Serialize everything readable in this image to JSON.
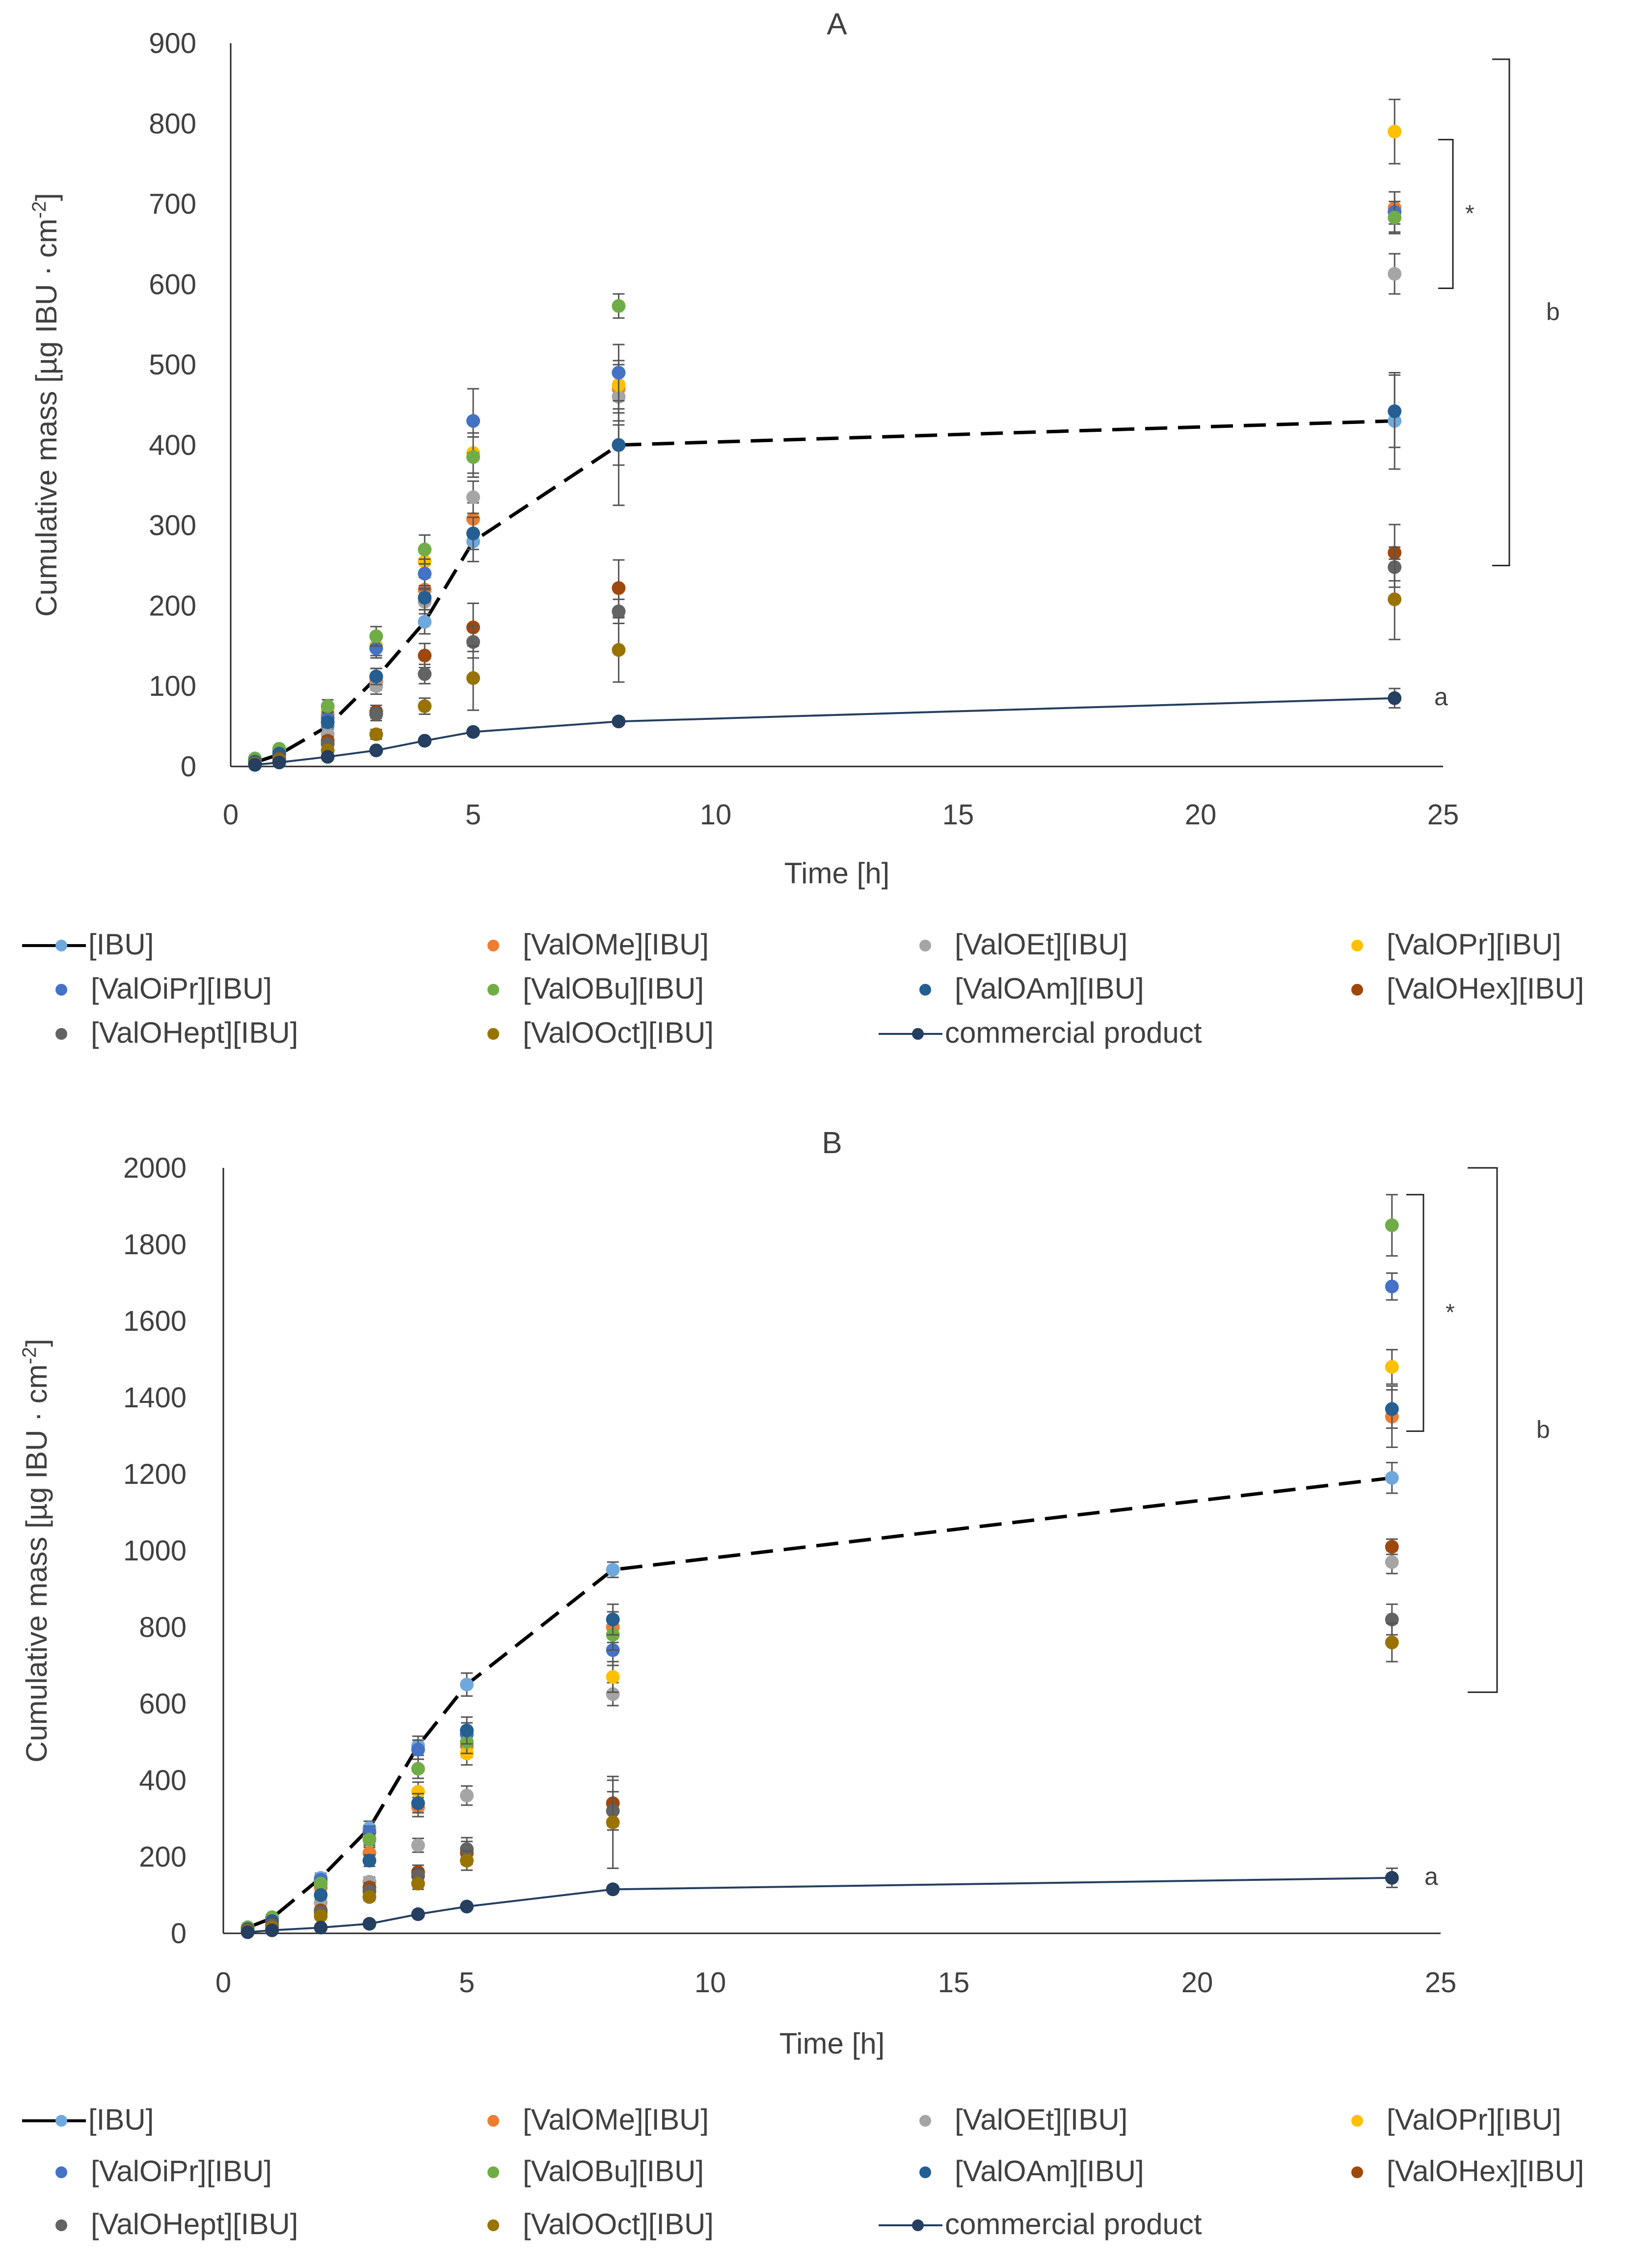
{
  "colors": {
    "IBU": "#6fa8dc",
    "ValOMe": "#ed7d31",
    "ValOEt": "#a5a5a5",
    "ValOPr": "#ffc000",
    "ValOiPr": "#4472c4",
    "ValOBu": "#70ad47",
    "ValOAm": "#255e91",
    "ValOHex": "#9e480e",
    "ValOHept": "#636363",
    "ValOOct": "#997300",
    "commercial": "#243f60",
    "text": "#404040",
    "axis": "#262626"
  },
  "legend_labels": [
    "[IBU]",
    "[ValOMe][IBU]",
    "[ValOEt][IBU]",
    "[ValOPr][IBU]",
    "[ValOiPr][IBU]",
    "[ValOBu][IBU]",
    "[ValOAm][IBU]",
    "[ValOHex][IBU]",
    "[ValOHept][IBU]",
    "[ValOOct][IBU]",
    "commercial product"
  ],
  "chart_data": [
    {
      "type": "scatter",
      "title": "A",
      "xlabel": "Time [h]",
      "ylabel": "Cumulative mass [µg IBU · cm",
      "ylabel_sup": "-2",
      "ylabel_end": "]",
      "xlim": [
        0,
        25
      ],
      "ylim": [
        0,
        900
      ],
      "x_ticks": [
        0,
        5,
        10,
        15,
        20,
        25
      ],
      "y_ticks": [
        0,
        100,
        200,
        300,
        400,
        500,
        600,
        700,
        800,
        900
      ],
      "x": [
        0.5,
        1,
        2,
        3,
        4,
        5,
        8,
        24
      ],
      "series": [
        {
          "name": "[IBU]",
          "key": "IBU",
          "style": "dashed-line",
          "values": [
            5,
            15,
            50,
            110,
            180,
            280,
            400,
            430
          ],
          "errors": [
            2,
            4,
            8,
            12,
            15,
            25,
            75,
            60
          ]
        },
        {
          "name": "[ValOMe][IBU]",
          "key": "ValOMe",
          "style": "marker",
          "values": [
            8,
            18,
            65,
            105,
            220,
            308,
            470,
            695
          ],
          "errors": [
            2,
            4,
            8,
            10,
            15,
            20,
            30,
            20
          ]
        },
        {
          "name": "[ValOEt][IBU]",
          "key": "ValOEt",
          "style": "marker",
          "values": [
            6,
            14,
            40,
            100,
            205,
            335,
            460,
            613
          ],
          "errors": [
            2,
            3,
            6,
            10,
            15,
            20,
            30,
            25
          ]
        },
        {
          "name": "[ValOPr][IBU]",
          "key": "ValOPr",
          "style": "marker",
          "values": [
            9,
            20,
            70,
            150,
            255,
            390,
            475,
            790
          ],
          "errors": [
            2,
            4,
            8,
            12,
            18,
            25,
            30,
            40
          ]
        },
        {
          "name": "[ValOiPr][IBU]",
          "key": "ValOiPr",
          "style": "marker",
          "values": [
            7,
            19,
            60,
            147,
            240,
            430,
            490,
            690
          ],
          "errors": [
            2,
            4,
            8,
            12,
            18,
            40,
            35,
            25
          ]
        },
        {
          "name": "[ValOBu][IBU]",
          "key": "ValOBu",
          "style": "marker",
          "values": [
            10,
            22,
            75,
            162,
            270,
            385,
            573,
            683
          ],
          "errors": [
            2,
            4,
            8,
            12,
            18,
            25,
            15,
            20
          ]
        },
        {
          "name": "[ValOAm][IBU]",
          "key": "ValOAm",
          "style": "marker",
          "values": [
            6,
            16,
            55,
            112,
            210,
            290,
            400,
            442
          ],
          "errors": [
            2,
            3,
            6,
            10,
            15,
            20,
            25,
            45
          ]
        },
        {
          "name": "[ValOHex][IBU]",
          "key": "ValOHex",
          "style": "marker",
          "values": [
            4,
            10,
            32,
            68,
            138,
            173,
            222,
            266
          ],
          "errors": [
            2,
            3,
            5,
            8,
            15,
            30,
            35,
            35
          ]
        },
        {
          "name": "[ValOHept][IBU]",
          "key": "ValOHept",
          "style": "marker",
          "values": [
            4,
            9,
            28,
            65,
            115,
            155,
            193,
            248
          ],
          "errors": [
            2,
            3,
            5,
            8,
            12,
            20,
            15,
            25
          ]
        },
        {
          "name": "[ValOOct][IBU]",
          "key": "ValOOct",
          "style": "marker",
          "values": [
            3,
            7,
            20,
            40,
            75,
            110,
            145,
            208
          ],
          "errors": [
            1,
            2,
            4,
            6,
            10,
            40,
            40,
            50
          ]
        },
        {
          "name": "commercial product",
          "key": "commercial",
          "style": "solid-line",
          "values": [
            2,
            5,
            12,
            20,
            32,
            43,
            56,
            85
          ],
          "errors": [
            1,
            1,
            2,
            3,
            3,
            4,
            4,
            12
          ]
        }
      ],
      "annotations": {
        "a": "a",
        "b": "b",
        "star": "*"
      }
    },
    {
      "type": "scatter",
      "title": "B",
      "xlabel": "Time [h]",
      "ylabel": "Cumulative mass [µg IBU · cm",
      "ylabel_sup": "-2",
      "ylabel_end": "]",
      "xlim": [
        0,
        25
      ],
      "ylim": [
        0,
        2000
      ],
      "x_ticks": [
        0,
        5,
        10,
        15,
        20,
        25
      ],
      "y_ticks": [
        0,
        200,
        400,
        600,
        800,
        1000,
        1200,
        1400,
        1600,
        1800,
        2000
      ],
      "x": [
        0.5,
        1,
        2,
        3,
        4,
        5,
        8,
        24
      ],
      "series": [
        {
          "name": "[IBU]",
          "key": "IBU",
          "style": "dashed-line",
          "values": [
            15,
            40,
            145,
            275,
            490,
            650,
            950,
            1190
          ],
          "errors": [
            3,
            6,
            12,
            18,
            25,
            30,
            20,
            40
          ]
        },
        {
          "name": "[ValOMe][IBU]",
          "key": "ValOMe",
          "style": "marker",
          "values": [
            10,
            30,
            120,
            210,
            330,
            490,
            800,
            1350
          ],
          "errors": [
            3,
            5,
            10,
            15,
            25,
            30,
            40,
            80
          ]
        },
        {
          "name": "[ValOEt][IBU]",
          "key": "ValOEt",
          "style": "marker",
          "values": [
            8,
            20,
            80,
            135,
            230,
            360,
            625,
            970
          ],
          "errors": [
            2,
            4,
            8,
            12,
            18,
            25,
            30,
            30
          ]
        },
        {
          "name": "[ValOPr][IBU]",
          "key": "ValOPr",
          "style": "marker",
          "values": [
            12,
            35,
            130,
            250,
            370,
            470,
            670,
            1480
          ],
          "errors": [
            3,
            5,
            10,
            15,
            25,
            30,
            40,
            45
          ]
        },
        {
          "name": "[ValOiPr][IBU]",
          "key": "ValOiPr",
          "style": "marker",
          "values": [
            14,
            38,
            140,
            265,
            480,
            520,
            740,
            1690
          ],
          "errors": [
            3,
            5,
            10,
            15,
            25,
            30,
            40,
            35
          ]
        },
        {
          "name": "[ValOBu][IBU]",
          "key": "ValOBu",
          "style": "marker",
          "values": [
            16,
            42,
            130,
            245,
            430,
            500,
            780,
            1850
          ],
          "errors": [
            3,
            5,
            10,
            15,
            25,
            30,
            40,
            80
          ]
        },
        {
          "name": "[ValOAm][IBU]",
          "key": "ValOAm",
          "style": "marker",
          "values": [
            11,
            32,
            100,
            190,
            340,
            530,
            820,
            1370
          ],
          "errors": [
            3,
            5,
            10,
            15,
            25,
            35,
            40,
            50
          ]
        },
        {
          "name": "[ValOHex][IBU]",
          "key": "ValOHex",
          "style": "marker",
          "values": [
            8,
            22,
            60,
            120,
            160,
            210,
            340,
            1010
          ],
          "errors": [
            2,
            4,
            8,
            12,
            18,
            30,
            60,
            20
          ]
        },
        {
          "name": "[ValOHept][IBU]",
          "key": "ValOHept",
          "style": "marker",
          "values": [
            7,
            20,
            55,
            110,
            150,
            220,
            320,
            820
          ],
          "errors": [
            2,
            4,
            8,
            12,
            18,
            30,
            50,
            40
          ]
        },
        {
          "name": "[ValOOct][IBU]",
          "key": "ValOOct",
          "style": "marker",
          "values": [
            6,
            15,
            45,
            95,
            130,
            190,
            290,
            760
          ],
          "errors": [
            2,
            3,
            6,
            10,
            15,
            25,
            120,
            50
          ]
        },
        {
          "name": "commercial product",
          "key": "commercial",
          "style": "solid-line",
          "values": [
            3,
            8,
            15,
            25,
            50,
            70,
            115,
            145
          ],
          "errors": [
            1,
            2,
            3,
            4,
            5,
            6,
            8,
            25
          ]
        }
      ],
      "annotations": {
        "a": "a",
        "b": "b",
        "star": "*"
      }
    }
  ]
}
